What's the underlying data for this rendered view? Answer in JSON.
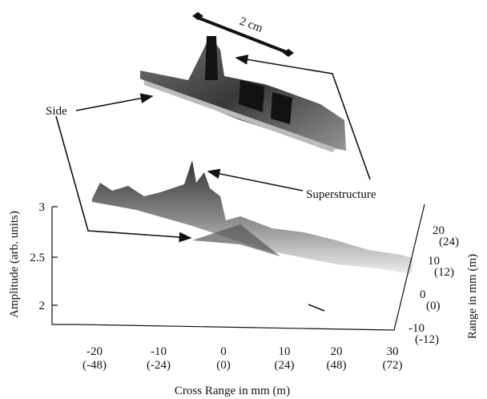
{
  "figure": {
    "scale_label": "2 cm",
    "side_label": "Side",
    "superstructure_label": "Superstructure",
    "amplitude_axis": {
      "title": "Amplitude (arb. units)",
      "ticks": [
        "3",
        "2.5",
        "2"
      ]
    },
    "cross_range_axis": {
      "title": "Cross Range in mm (m)",
      "ticks": [
        [
          "-20",
          "(-48)"
        ],
        [
          "-10",
          "(-24)"
        ],
        [
          "0",
          "(0)"
        ],
        [
          "10",
          "(24)"
        ],
        [
          "20",
          "(48)"
        ],
        [
          "30",
          "(72)"
        ]
      ]
    },
    "range_axis": {
      "title": "Range in mm (m)",
      "ticks": [
        [
          "20",
          "(24)"
        ],
        [
          "10",
          "(12)"
        ],
        [
          "0",
          "(0)"
        ],
        [
          "-10",
          "(-12)"
        ]
      ]
    }
  }
}
